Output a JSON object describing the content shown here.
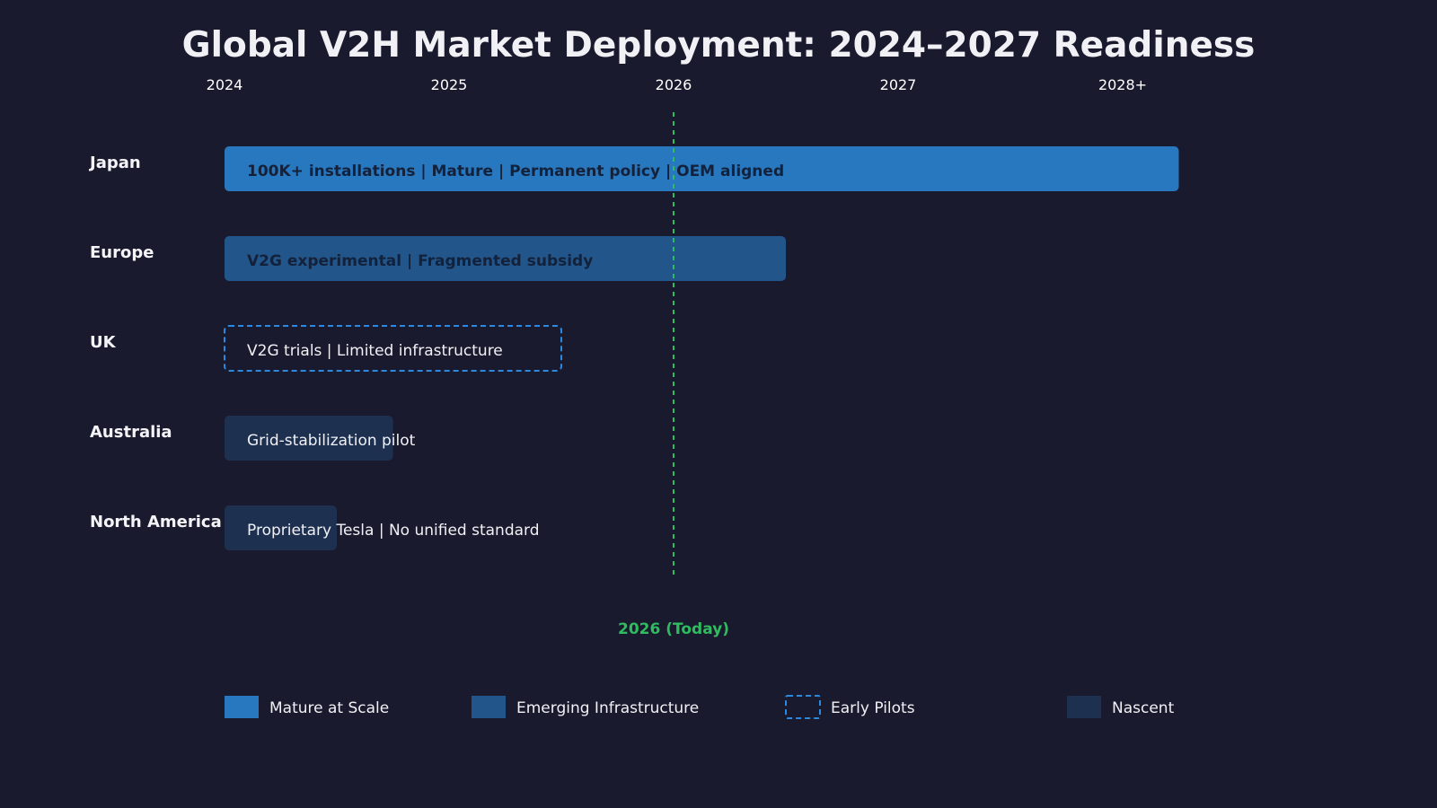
{
  "chart_data": {
    "type": "timeline",
    "title": "Global V2H Market Deployment: 2024–2027 Readiness",
    "x_ticks": [
      {
        "value": 2024,
        "label": "2024"
      },
      {
        "value": 2025,
        "label": "2025"
      },
      {
        "value": 2026,
        "label": "2026"
      },
      {
        "value": 2027,
        "label": "2027"
      },
      {
        "value": 2028,
        "label": "2028+"
      }
    ],
    "xlim": [
      2024,
      2028
    ],
    "categories": [
      "Japan",
      "Europe",
      "UK",
      "Australia",
      "North America"
    ],
    "bars": [
      {
        "region": "Japan",
        "start": 2024,
        "end": 2028.25,
        "status": "mature",
        "label": "100K+ installations | Mature | Permanent policy | OEM aligned"
      },
      {
        "region": "Europe",
        "start": 2024,
        "end": 2026.5,
        "status": "emerging",
        "label": "V2G experimental | Fragmented subsidy"
      },
      {
        "region": "UK",
        "start": 2024,
        "end": 2025.5,
        "status": "pilot",
        "label": "V2G trials | Limited infrastructure"
      },
      {
        "region": "Australia",
        "start": 2024,
        "end": 2024.75,
        "status": "nascent",
        "label": "Grid-stabilization pilot"
      },
      {
        "region": "North America",
        "start": 2024,
        "end": 2024.5,
        "status": "nascent",
        "label": "Proprietary Tesla | No unified standard"
      }
    ],
    "reference_line": {
      "value": 2026,
      "label": "2026 (Today)",
      "color": "#2ebd5e"
    },
    "legend": [
      {
        "key": "mature",
        "label": "Mature at Scale"
      },
      {
        "key": "emerging",
        "label": "Emerging Infrastructure"
      },
      {
        "key": "pilot",
        "label": "Early Pilots"
      },
      {
        "key": "nascent",
        "label": "Nascent"
      }
    ],
    "legend_position": "bottom",
    "grid": false,
    "colors": {
      "background": "#1a1a2e",
      "mature": "#2878c0",
      "emerging": "#225589",
      "pilot_border": "#2b8ae0",
      "nascent": "#1e3050"
    }
  }
}
